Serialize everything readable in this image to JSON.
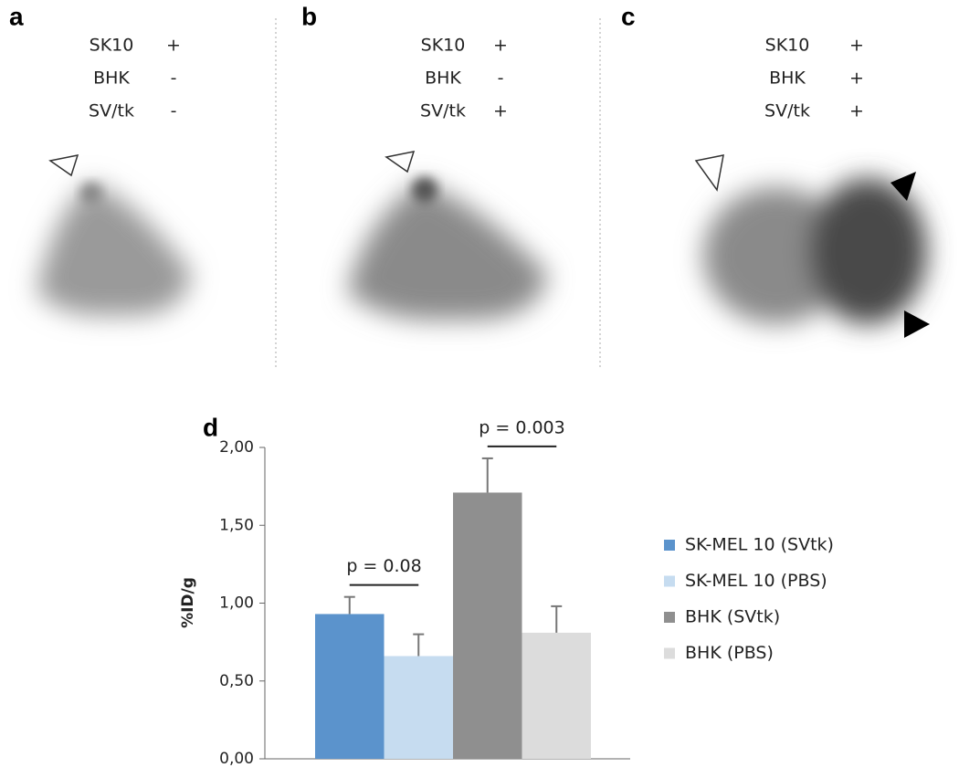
{
  "panels": [
    {
      "label": "a",
      "rows": [
        [
          "SK10",
          "+"
        ],
        [
          "BHK",
          "-"
        ],
        [
          "SV/tk",
          "-"
        ]
      ]
    },
    {
      "label": "b",
      "rows": [
        [
          "SK10",
          "+"
        ],
        [
          "BHK",
          "-"
        ],
        [
          "SV/tk",
          "+"
        ]
      ]
    },
    {
      "label": "c",
      "rows": [
        [
          "SK10",
          "+"
        ],
        [
          "BHK",
          "+"
        ],
        [
          "SV/tk",
          "+"
        ]
      ]
    }
  ],
  "chart_data": {
    "type": "bar",
    "label": "d",
    "y_label": "%ID/g",
    "categories": [
      null
    ],
    "series": [
      {
        "name": "SK-MEL 10 (SVtk)",
        "color": "#5b93cc",
        "values": [
          0.93
        ],
        "errors": [
          0.11
        ]
      },
      {
        "name": "SK-MEL 10 (PBS)",
        "color": "#c6dcf0",
        "values": [
          0.66
        ],
        "errors": [
          0.14
        ]
      },
      {
        "name": "BHK (SVtk)",
        "color": "#8f8f8f",
        "values": [
          1.71
        ],
        "errors": [
          0.22
        ]
      },
      {
        "name": "BHK (PBS)",
        "color": "#dcdcdc",
        "values": [
          0.81
        ],
        "errors": [
          0.17
        ]
      }
    ],
    "ylim": [
      0,
      2
    ],
    "yticks": [
      {
        "value": 0,
        "label": "0,00"
      },
      {
        "value": 0.5,
        "label": "0,50"
      },
      {
        "value": 1,
        "label": "1,00"
      },
      {
        "value": 1.5,
        "label": "1,50"
      },
      {
        "value": 2,
        "label": "2,00"
      }
    ],
    "annotations": [
      "p = 0.08",
      "p = 0.003"
    ],
    "error_color": "#777777"
  }
}
